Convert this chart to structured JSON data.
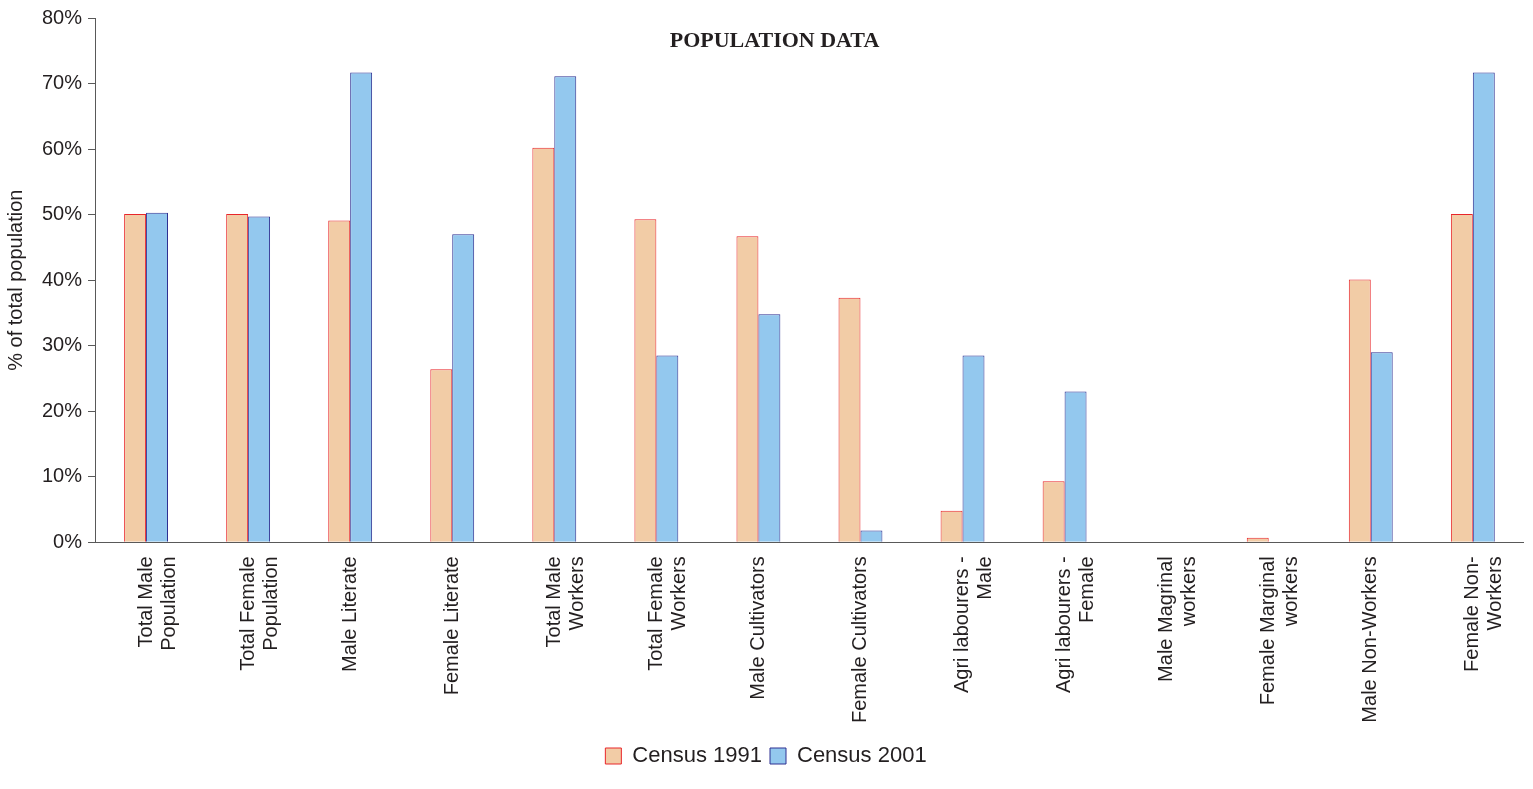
{
  "chart_data": {
    "type": "bar",
    "title": "POPULATION DATA",
    "ylabel": "% of total population",
    "categories": [
      "Total Male Population",
      "Total Female Population",
      "Male Literate",
      "Female Literate",
      "Total Male Workers",
      "Total Female Workers",
      "Male Cultivators",
      "Female Cultivators",
      "Agri labourers - Male",
      "Agri labourers - Female",
      "Male Magrinal workers",
      "Female Marginal workers",
      "Male Non-Workers",
      "Female Non-Workers"
    ],
    "series": [
      {
        "name": "Census 1991",
        "color": "#f2cca6",
        "values": [
          50.1,
          50.1,
          49.1,
          26.4,
          60.2,
          49.3,
          46.7,
          37.3,
          4.8,
          9.3,
          null,
          0.7,
          40.1,
          50.1
        ]
      },
      {
        "name": "Census 2001",
        "color": "#93c8ee",
        "values": [
          50.3,
          49.7,
          71.7,
          47.0,
          71.1,
          28.5,
          34.8,
          1.8,
          28.5,
          23.0,
          null,
          null,
          29.0,
          71.7
        ]
      }
    ],
    "ylim": [
      0,
      80
    ],
    "yticks": [
      {
        "value": 0,
        "label": "0%"
      },
      {
        "value": 10,
        "label": "10%"
      },
      {
        "value": 20,
        "label": "20%"
      },
      {
        "value": 30,
        "label": "30%"
      },
      {
        "value": 40,
        "label": "40%"
      },
      {
        "value": 50,
        "label": "50%"
      },
      {
        "value": 60,
        "label": "60%"
      },
      {
        "value": 70,
        "label": "70%"
      },
      {
        "value": 80,
        "label": "80%"
      }
    ],
    "grid": false,
    "legend": "bottom"
  }
}
